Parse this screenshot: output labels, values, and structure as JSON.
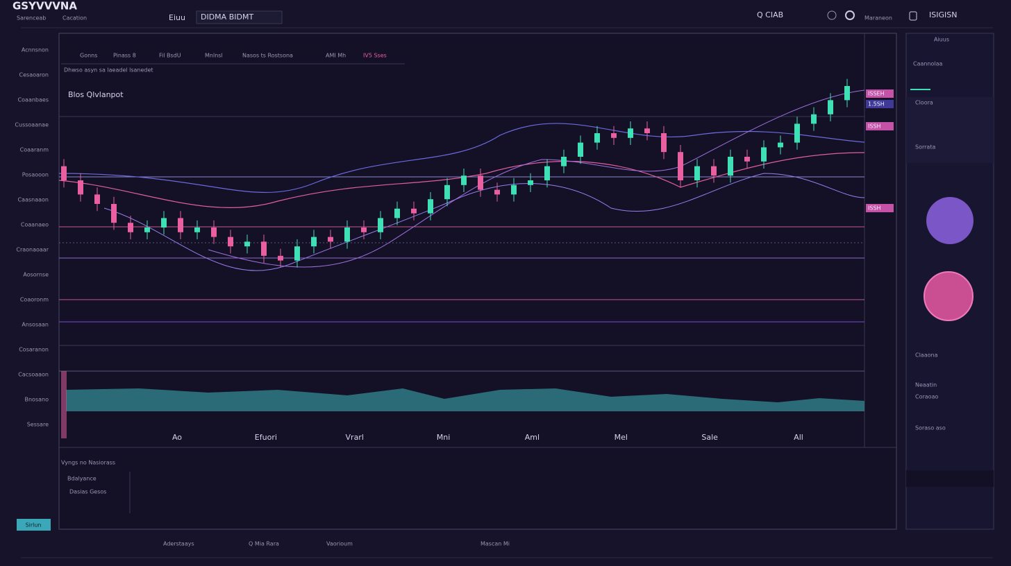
{
  "header": {
    "logo": "GSYVVVNA",
    "subtitle": "Sarenceab",
    "subtitle2": "Cacation",
    "menu": "Eiuu",
    "search": "DIDMA BIDMT",
    "user": "Q CIAB",
    "account": "Maraneon",
    "balance": "ISIGISN"
  },
  "sidebar": [
    "Acnnsnon",
    "Cesaoaron",
    "Coaanbaes",
    "Cussoaanae",
    "Coaaranm",
    "Posaooon",
    "Caasnaaon",
    "Coaanaeo",
    "Craonaoaar",
    "Aosornse",
    "Coaoronm",
    "Ansosaan",
    "Cosaranon",
    "Cacsoaaon",
    "Bnosano",
    "Sessare"
  ],
  "button": "Sirlun",
  "toolbar": [
    "Gonns",
    "Pinass 8",
    "Fil BsdU",
    "Mnlnsl",
    "Nasos ts Rostsona",
    "AMI Mh",
    "IV5 Sses"
  ],
  "chart_note": "Dhwso asyn sa laeadel lsanedet",
  "chart_legend": "Blos  Qlvlanpot",
  "chart_data": {
    "type": "candlestick",
    "x_labels": [
      "Ao",
      "Efuori",
      "Vrarl",
      "Mni",
      "Aml",
      "Mel",
      "Sale",
      "All"
    ],
    "ylim": [
      0,
      100
    ],
    "up_color": "#3fe0b5",
    "down_color": "#e8609f",
    "candles": [
      [
        56,
        59,
        47,
        50
      ],
      [
        50,
        53,
        41,
        44
      ],
      [
        44,
        47,
        37,
        40
      ],
      [
        40,
        43,
        29,
        32
      ],
      [
        32,
        35,
        25,
        28
      ],
      [
        28,
        33,
        25,
        30
      ],
      [
        30,
        37,
        27,
        34
      ],
      [
        34,
        37,
        25,
        28
      ],
      [
        28,
        33,
        25,
        30
      ],
      [
        30,
        33,
        23,
        26
      ],
      [
        26,
        29,
        19,
        22
      ],
      [
        22,
        27,
        19,
        24
      ],
      [
        24,
        27,
        15,
        18
      ],
      [
        18,
        21,
        13,
        16
      ],
      [
        16,
        25,
        13,
        22
      ],
      [
        22,
        29,
        19,
        26
      ],
      [
        26,
        29,
        21,
        24
      ],
      [
        24,
        33,
        21,
        30
      ],
      [
        30,
        33,
        25,
        28
      ],
      [
        28,
        37,
        25,
        34
      ],
      [
        34,
        41,
        31,
        38
      ],
      [
        38,
        41,
        33,
        36
      ],
      [
        36,
        45,
        33,
        42
      ],
      [
        42,
        51,
        39,
        48
      ],
      [
        48,
        55,
        45,
        52
      ],
      [
        52,
        55,
        43,
        46
      ],
      [
        46,
        49,
        41,
        44
      ],
      [
        44,
        51,
        41,
        48
      ],
      [
        48,
        53,
        45,
        50
      ],
      [
        50,
        59,
        47,
        56
      ],
      [
        56,
        63,
        53,
        60
      ],
      [
        60,
        69,
        57,
        66
      ],
      [
        66,
        73,
        63,
        70
      ],
      [
        70,
        73,
        65,
        68
      ],
      [
        68,
        75,
        65,
        72
      ],
      [
        72,
        75,
        67,
        70
      ],
      [
        70,
        73,
        59,
        62
      ],
      [
        62,
        65,
        47,
        50
      ],
      [
        50,
        59,
        47,
        56
      ],
      [
        56,
        59,
        49,
        52
      ],
      [
        52,
        63,
        49,
        60
      ],
      [
        60,
        63,
        55,
        58
      ],
      [
        58,
        67,
        55,
        64
      ],
      [
        64,
        69,
        61,
        66
      ],
      [
        66,
        77,
        63,
        74
      ],
      [
        74,
        81,
        71,
        78
      ],
      [
        78,
        87,
        75,
        84
      ],
      [
        84,
        93,
        81,
        90
      ]
    ]
  },
  "price_tags": [
    "ISSEH",
    "1.5SH",
    "ISSH",
    "ISSH"
  ],
  "bottom": {
    "title": "Vyngs no Nasiorass",
    "label": "Bdalyance",
    "sub": "Dasias Gesos"
  },
  "side_panel": {
    "title": "Aiuus",
    "heading": "Caannolaa",
    "items": [
      "Cloora",
      "Sorrata",
      "Claaona",
      "Neaatin",
      "Coraoao",
      "Soraso aso"
    ]
  },
  "footer": [
    "Aderstaays",
    "Q Mia Rara",
    "Vaorioum",
    "Mascan Mi"
  ]
}
